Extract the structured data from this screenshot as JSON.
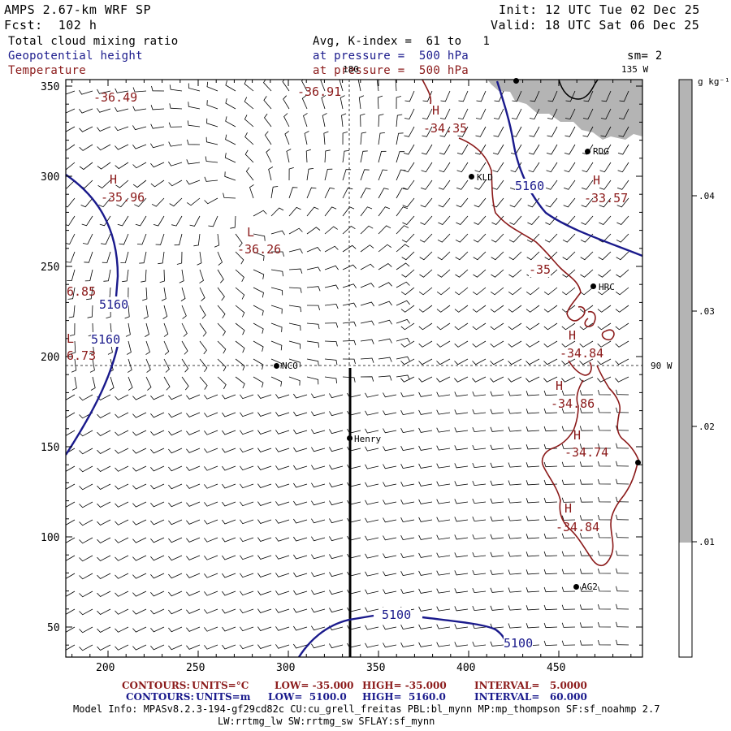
{
  "header": {
    "title": "AMPS 2.67-km WRF SP",
    "forecast": "Fcst:  102 h",
    "init": "Init: 12 UTC Tue 02 Dec 25",
    "valid": "Valid: 18 UTC Sat 06 Dec 25",
    "field_fill": "Total cloud mixing ratio",
    "field_contour1": "Geopotential height",
    "field_contour2": "Temperature",
    "avg_line": "Avg, K-index =  61 to   1",
    "pressure_line1": "at pressure =  500 hPa",
    "pressure_line2": "at pressure =  500 hPa",
    "smoothing": "sm= 2"
  },
  "colors": {
    "height_contour": "#1a1a8c",
    "temperature_contour": "#8b1a1a",
    "cloud_fill": "#b4b4b4",
    "barb": "#000000"
  },
  "map": {
    "x_ticks": [
      "200",
      "250",
      "300",
      "350",
      "400",
      "450"
    ],
    "y_ticks": [
      "350",
      "300",
      "250",
      "200",
      "150",
      "100",
      "50"
    ],
    "meridian_labels": {
      "top": "180",
      "top_right": "135 W",
      "right": "90 W"
    },
    "stations": [
      {
        "id": "LYT",
        "label": ""
      },
      {
        "id": "RDG",
        "label": "RDG"
      },
      {
        "id": "KLD",
        "label": "KLD"
      },
      {
        "id": "HRC",
        "label": "HRC"
      },
      {
        "id": "NCO",
        "label": "NCO"
      },
      {
        "id": "HENRY",
        "label": "Henry"
      },
      {
        "id": "AG2",
        "label": "AG2"
      },
      {
        "id": "EDGE",
        "label": ""
      }
    ],
    "height_labels": [
      "5160",
      "5160",
      "5160",
      "5100",
      "5100"
    ],
    "temp_labels": {
      "H1": "H",
      "v1": "-34.35",
      "H2": "H",
      "v2": "-35.96",
      "L1": "L",
      "v3": "-36.26",
      "v4": "-36.49",
      "v5": "-36.91",
      "H3": "H",
      "v6": "-33.57",
      "v7": "-35",
      "H4": "H",
      "v8": "-34.84",
      "H5": "H",
      "v9": "-34.86",
      "H6": "H",
      "v10": "-34.74",
      "H7": "H",
      "v11": "-34.84",
      "e1": "6.85",
      "eL": "L",
      "e2": "6.73"
    }
  },
  "colorbar": {
    "unit": "g kg⁻¹",
    "labels": [
      ".04",
      ".03",
      ".02",
      ".01"
    ]
  },
  "footer": {
    "red_line": {
      "contours": "CONTOURS:",
      "units": "UNITS=°C",
      "low": "LOW= -35.000",
      "high": "HIGH= -35.000",
      "interval": "INTERVAL=   5.0000"
    },
    "blue_line": {
      "contours": "CONTOURS:",
      "units": "UNITS=m",
      "low": "LOW=  5100.0",
      "high": "HIGH=  5160.0",
      "interval": "INTERVAL=   60.000"
    },
    "model_info": "Model Info: MPASv8.2.3-194-gf29cd82c CU:cu_grell_freitas PBL:bl_mynn MP:mp_thompson SF:sf_noahmp 2.7",
    "model_info2": "LW:rrtmg_lw SW:rrtmg_sw SFLAY:sf_mynn"
  }
}
